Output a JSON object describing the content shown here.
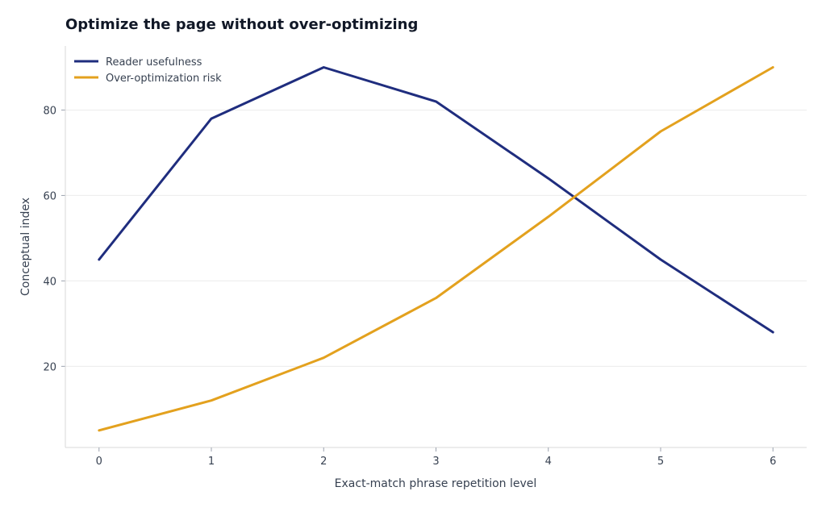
{
  "chart_data": {
    "type": "line",
    "title": "Optimize the page without over-optimizing",
    "xlabel": "Exact-match phrase repetition level",
    "ylabel": "Conceptual index",
    "x": [
      0,
      1,
      2,
      3,
      4,
      5,
      6
    ],
    "xlim": [
      -0.3,
      6.3
    ],
    "ylim": [
      1,
      95
    ],
    "yticks": [
      20,
      40,
      60,
      80
    ],
    "grid": "horizontal",
    "legend": "top-left",
    "series": [
      {
        "name": "Reader usefulness",
        "color": "#1f2d7e",
        "values": [
          45,
          78,
          90,
          82,
          64,
          45,
          28
        ]
      },
      {
        "name": "Over-optimization risk",
        "color": "#e3a11e",
        "values": [
          5,
          12,
          22,
          36,
          55,
          75,
          90
        ]
      }
    ]
  }
}
